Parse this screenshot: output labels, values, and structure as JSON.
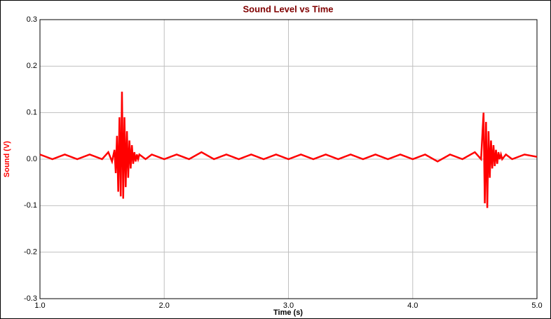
{
  "chart_data": {
    "type": "line",
    "title": "Sound Level vs Time",
    "xlabel": "Time (s)",
    "ylabel": "Sound (V)",
    "xlim": [
      1,
      5
    ],
    "ylim": [
      -0.3,
      0.3
    ],
    "xticks": [
      {
        "value": 1,
        "label": "1.0"
      },
      {
        "value": 2,
        "label": "2.0"
      },
      {
        "value": 3,
        "label": "3.0"
      },
      {
        "value": 4,
        "label": "4.0"
      },
      {
        "value": 5,
        "label": "5.0"
      }
    ],
    "yticks": [
      0.3,
      0.2,
      0.1,
      {
        "value": 0,
        "label": "0.0"
      },
      -0.1,
      -0.2,
      -0.3
    ],
    "grid": true,
    "x": [
      1.0,
      1.1,
      1.2,
      1.3,
      1.4,
      1.5,
      1.55,
      1.58,
      1.6,
      1.61,
      1.62,
      1.63,
      1.64,
      1.65,
      1.66,
      1.67,
      1.68,
      1.69,
      1.7,
      1.71,
      1.72,
      1.73,
      1.74,
      1.75,
      1.76,
      1.77,
      1.78,
      1.79,
      1.8,
      1.85,
      1.9,
      2.0,
      2.1,
      2.2,
      2.3,
      2.4,
      2.5,
      2.6,
      2.7,
      2.8,
      2.9,
      3.0,
      3.1,
      3.2,
      3.3,
      3.4,
      3.5,
      3.6,
      3.7,
      3.8,
      3.9,
      4.0,
      4.1,
      4.2,
      4.3,
      4.4,
      4.5,
      4.55,
      4.57,
      4.58,
      4.59,
      4.6,
      4.61,
      4.62,
      4.63,
      4.64,
      4.65,
      4.66,
      4.67,
      4.68,
      4.69,
      4.7,
      4.71,
      4.72,
      4.75,
      4.8,
      4.9,
      5.0
    ],
    "series": [
      {
        "name": "Sound",
        "color": "#ff0000",
        "values": [
          0.01,
          0.0,
          0.01,
          0.0,
          0.01,
          0.0,
          0.015,
          -0.005,
          0.02,
          -0.03,
          0.05,
          -0.07,
          0.09,
          -0.08,
          0.145,
          -0.085,
          0.09,
          -0.06,
          0.06,
          -0.04,
          0.04,
          -0.02,
          0.03,
          -0.01,
          0.015,
          -0.005,
          0.01,
          0.0,
          0.01,
          0.0,
          0.01,
          0.0,
          0.01,
          0.0,
          0.015,
          0.0,
          0.01,
          0.0,
          0.01,
          0.0,
          0.01,
          0.0,
          0.01,
          0.0,
          0.01,
          0.0,
          0.01,
          0.0,
          0.01,
          0.0,
          0.01,
          0.0,
          0.01,
          -0.005,
          0.01,
          0.0,
          0.015,
          0.0,
          0.1,
          -0.095,
          0.08,
          -0.105,
          0.06,
          -0.04,
          0.04,
          -0.02,
          0.03,
          -0.015,
          0.02,
          -0.01,
          0.015,
          0.0,
          0.01,
          0.0,
          0.01,
          0.0,
          0.01,
          0.005
        ]
      }
    ]
  }
}
